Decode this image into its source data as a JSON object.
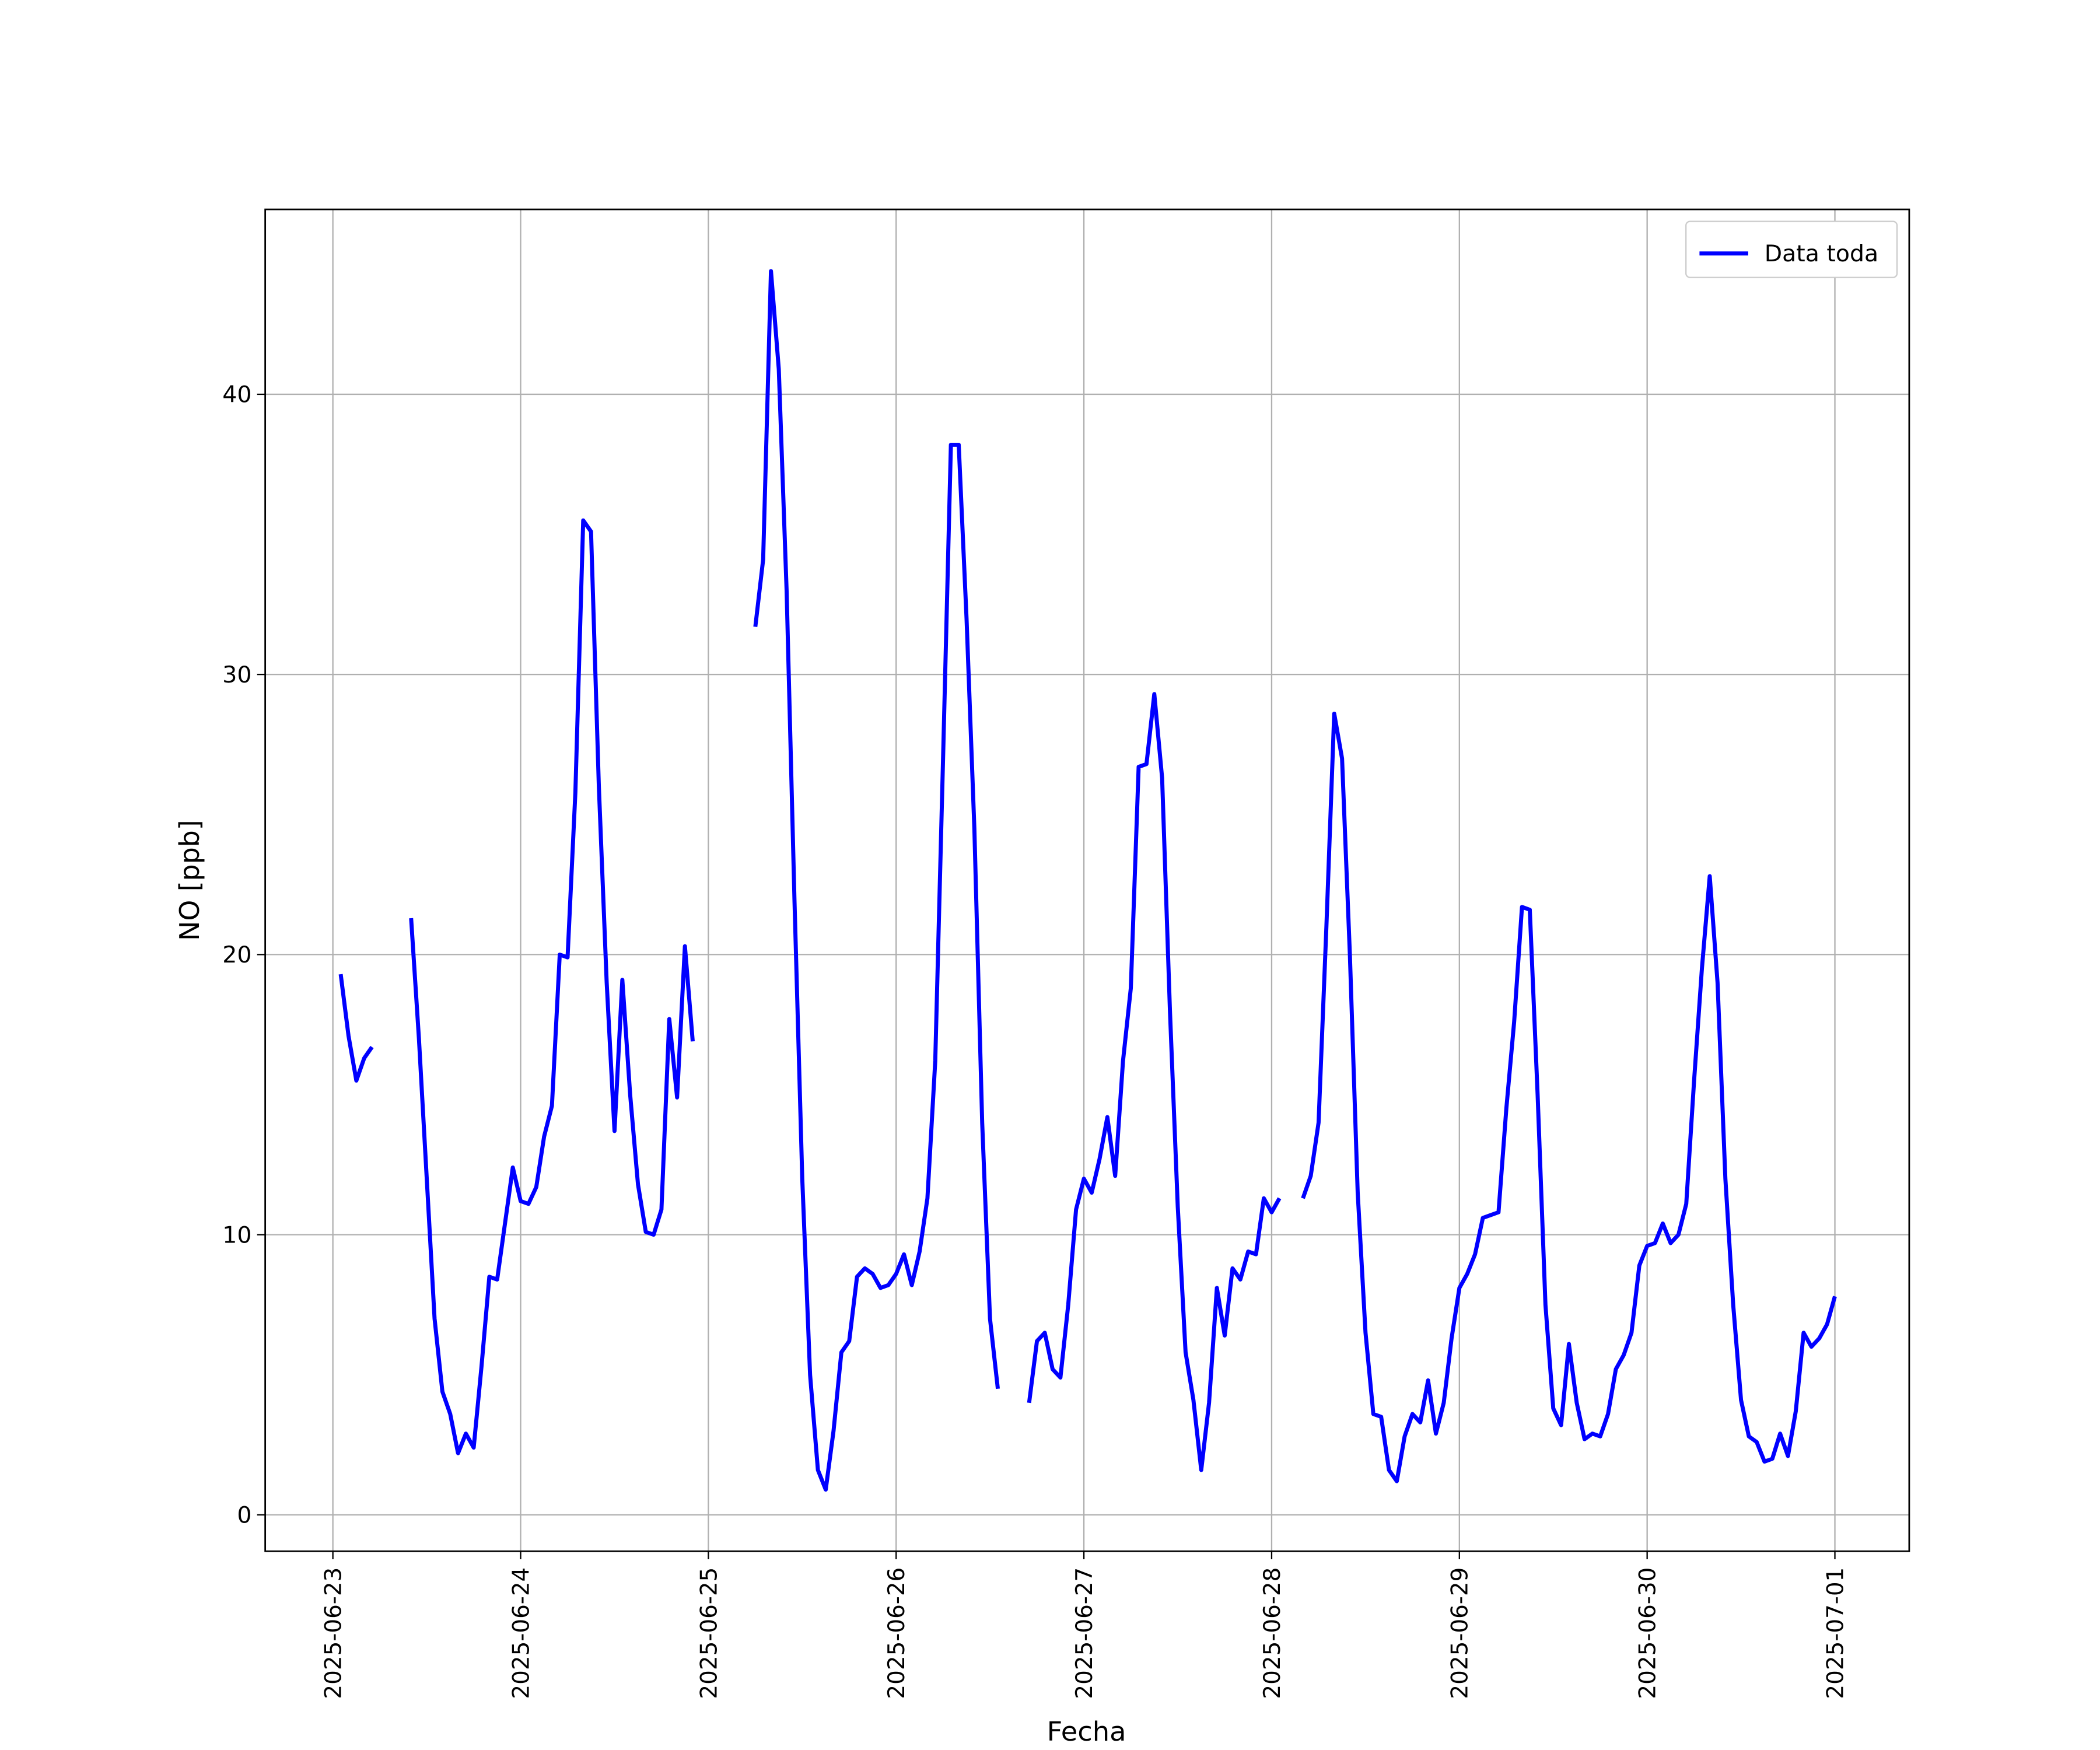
{
  "chart_data": {
    "type": "line",
    "xlabel": "Fecha",
    "ylabel": "NO [ppb]",
    "xlim": [
      "2025-06-22T15:21",
      "2025-07-01T09:30"
    ],
    "xticks": [
      "2025-06-23",
      "2025-06-24",
      "2025-06-25",
      "2025-06-26",
      "2025-06-27",
      "2025-06-28",
      "2025-06-29",
      "2025-06-30",
      "2025-07-01"
    ],
    "ylim": [
      -1.3,
      46.6
    ],
    "yticks": [
      0,
      10,
      20,
      30,
      40
    ],
    "grid": true,
    "legend": "upper right",
    "x": [
      "2025-06-23T01:00",
      "2025-06-23T02:00",
      "2025-06-23T03:00",
      "2025-06-23T04:00",
      "2025-06-23T05:00",
      "2025-06-23T07:00",
      "2025-06-23T10:00",
      "2025-06-23T11:00",
      "2025-06-23T12:00",
      "2025-06-23T13:00",
      "2025-06-23T14:00",
      "2025-06-23T15:00",
      "2025-06-23T16:00",
      "2025-06-23T17:00",
      "2025-06-23T18:00",
      "2025-06-23T19:00",
      "2025-06-23T20:00",
      "2025-06-23T21:00",
      "2025-06-23T22:00",
      "2025-06-23T23:00",
      "2025-06-24T00:00",
      "2025-06-24T01:00",
      "2025-06-24T02:00",
      "2025-06-24T03:00",
      "2025-06-24T04:00",
      "2025-06-24T05:00",
      "2025-06-24T06:00",
      "2025-06-24T07:00",
      "2025-06-24T08:00",
      "2025-06-24T09:00",
      "2025-06-24T10:00",
      "2025-06-24T11:00",
      "2025-06-24T12:00",
      "2025-06-24T13:00",
      "2025-06-24T14:00",
      "2025-06-24T15:00",
      "2025-06-24T16:00",
      "2025-06-24T17:00",
      "2025-06-24T18:00",
      "2025-06-24T19:00",
      "2025-06-24T20:00",
      "2025-06-24T21:00",
      "2025-06-24T22:00",
      "2025-06-25T02:00",
      "2025-06-25T06:00",
      "2025-06-25T07:00",
      "2025-06-25T08:00",
      "2025-06-25T09:00",
      "2025-06-25T10:00",
      "2025-06-25T11:00",
      "2025-06-25T12:00",
      "2025-06-25T13:00",
      "2025-06-25T14:00",
      "2025-06-25T15:00",
      "2025-06-25T16:00",
      "2025-06-25T17:00",
      "2025-06-25T18:00",
      "2025-06-25T19:00",
      "2025-06-25T20:00",
      "2025-06-25T21:00",
      "2025-06-25T22:00",
      "2025-06-25T23:00",
      "2025-06-26T00:00",
      "2025-06-26T01:00",
      "2025-06-26T02:00",
      "2025-06-26T03:00",
      "2025-06-26T04:00",
      "2025-06-26T05:00",
      "2025-06-26T06:00",
      "2025-06-26T07:00",
      "2025-06-26T08:00",
      "2025-06-26T09:00",
      "2025-06-26T10:00",
      "2025-06-26T11:00",
      "2025-06-26T12:00",
      "2025-06-26T13:00",
      "2025-06-26T15:00",
      "2025-06-26T17:00",
      "2025-06-26T18:00",
      "2025-06-26T19:00",
      "2025-06-26T20:00",
      "2025-06-26T21:00",
      "2025-06-26T22:00",
      "2025-06-26T23:00",
      "2025-06-27T00:00",
      "2025-06-27T01:00",
      "2025-06-27T02:00",
      "2025-06-27T03:00",
      "2025-06-27T04:00",
      "2025-06-27T05:00",
      "2025-06-27T06:00",
      "2025-06-27T07:00",
      "2025-06-27T08:00",
      "2025-06-27T09:00",
      "2025-06-27T10:00",
      "2025-06-27T11:00",
      "2025-06-27T12:00",
      "2025-06-27T13:00",
      "2025-06-27T14:00",
      "2025-06-27T15:00",
      "2025-06-27T16:00",
      "2025-06-27T17:00",
      "2025-06-27T18:00",
      "2025-06-27T19:00",
      "2025-06-27T20:00",
      "2025-06-27T21:00",
      "2025-06-27T22:00",
      "2025-06-27T23:00",
      "2025-06-28T00:00",
      "2025-06-28T01:00",
      "2025-06-28T02:00",
      "2025-06-28T04:00",
      "2025-06-28T05:00",
      "2025-06-28T06:00",
      "2025-06-28T07:00",
      "2025-06-28T08:00",
      "2025-06-28T09:00",
      "2025-06-28T10:00",
      "2025-06-28T11:00",
      "2025-06-28T12:00",
      "2025-06-28T13:00",
      "2025-06-28T14:00",
      "2025-06-28T15:00",
      "2025-06-28T16:00",
      "2025-06-28T17:00",
      "2025-06-28T18:00",
      "2025-06-28T19:00",
      "2025-06-28T20:00",
      "2025-06-28T21:00",
      "2025-06-28T22:00",
      "2025-06-28T23:00",
      "2025-06-29T00:00",
      "2025-06-29T01:00",
      "2025-06-29T02:00",
      "2025-06-29T03:00",
      "2025-06-29T04:00",
      "2025-06-29T05:00",
      "2025-06-29T06:00",
      "2025-06-29T07:00",
      "2025-06-29T08:00",
      "2025-06-29T09:00",
      "2025-06-29T10:00",
      "2025-06-29T11:00",
      "2025-06-29T12:00",
      "2025-06-29T13:00",
      "2025-06-29T14:00",
      "2025-06-29T15:00",
      "2025-06-29T16:00",
      "2025-06-29T17:00",
      "2025-06-29T18:00",
      "2025-06-29T19:00",
      "2025-06-29T20:00",
      "2025-06-29T21:00",
      "2025-06-29T22:00",
      "2025-06-29T23:00",
      "2025-06-30T00:00",
      "2025-06-30T01:00",
      "2025-06-30T02:00",
      "2025-06-30T03:00",
      "2025-06-30T04:00",
      "2025-06-30T05:00",
      "2025-06-30T06:00",
      "2025-06-30T07:00",
      "2025-06-30T08:00",
      "2025-06-30T09:00",
      "2025-06-30T10:00",
      "2025-06-30T11:00",
      "2025-06-30T12:00",
      "2025-06-30T13:00",
      "2025-06-30T14:00",
      "2025-06-30T15:00",
      "2025-06-30T16:00",
      "2025-06-30T17:00",
      "2025-06-30T18:00",
      "2025-06-30T19:00",
      "2025-06-30T20:00",
      "2025-06-30T21:00",
      "2025-06-30T22:00",
      "2025-06-30T23:00",
      "2025-07-01T00:00"
    ],
    "series": [
      {
        "name": "Data toda",
        "color": "#0000ff",
        "values": [
          19.3,
          17.1,
          15.5,
          16.3,
          16.7,
          null,
          21.3,
          17.0,
          12.0,
          7.0,
          4.4,
          3.6,
          2.2,
          2.9,
          2.4,
          5.3,
          8.5,
          8.4,
          10.4,
          12.4,
          11.2,
          11.1,
          11.7,
          13.5,
          14.6,
          20.0,
          19.9,
          25.8,
          35.5,
          35.1,
          26.0,
          19.0,
          13.7,
          19.1,
          15.0,
          11.8,
          10.1,
          10.0,
          10.9,
          17.7,
          14.9,
          20.3,
          16.9,
          null,
          31.7,
          34.1,
          44.4,
          40.9,
          33.0,
          22.0,
          12.0,
          5.0,
          1.6,
          0.9,
          3.0,
          5.8,
          6.2,
          8.5,
          8.8,
          8.6,
          8.1,
          8.2,
          8.6,
          9.3,
          8.2,
          9.4,
          11.3,
          16.2,
          27.0,
          38.2,
          38.2,
          32.0,
          24.5,
          14.0,
          7.0,
          4.5,
          null,
          4.0,
          6.2,
          6.5,
          5.2,
          4.9,
          7.5,
          10.9,
          12.0,
          11.5,
          12.7,
          14.2,
          12.1,
          16.2,
          18.8,
          26.7,
          26.8,
          29.3,
          26.3,
          18.0,
          11.0,
          5.8,
          4.1,
          1.6,
          4.0,
          8.1,
          6.4,
          8.8,
          8.4,
          9.4,
          9.3,
          11.3,
          10.8,
          11.3,
          null,
          11.3,
          12.1,
          14.0,
          21.0,
          28.6,
          27.0,
          20.0,
          11.5,
          6.5,
          3.6,
          3.5,
          1.6,
          1.2,
          2.8,
          3.6,
          3.3,
          4.8,
          2.9,
          4.0,
          6.3,
          8.1,
          8.6,
          9.3,
          10.6,
          10.7,
          10.8,
          14.5,
          17.6,
          21.7,
          21.6,
          15.0,
          7.5,
          3.8,
          3.2,
          6.1,
          4.0,
          2.7,
          2.9,
          2.8,
          3.6,
          5.2,
          5.7,
          6.5,
          8.9,
          9.6,
          9.7,
          10.4,
          9.7,
          10.0,
          11.1,
          15.5,
          19.5,
          22.8,
          19.0,
          12.0,
          7.5,
          4.1,
          2.8,
          2.6,
          1.9,
          2.0,
          2.9,
          2.1,
          3.7,
          6.5,
          6.0,
          6.3,
          6.8,
          7.8
        ]
      }
    ]
  }
}
